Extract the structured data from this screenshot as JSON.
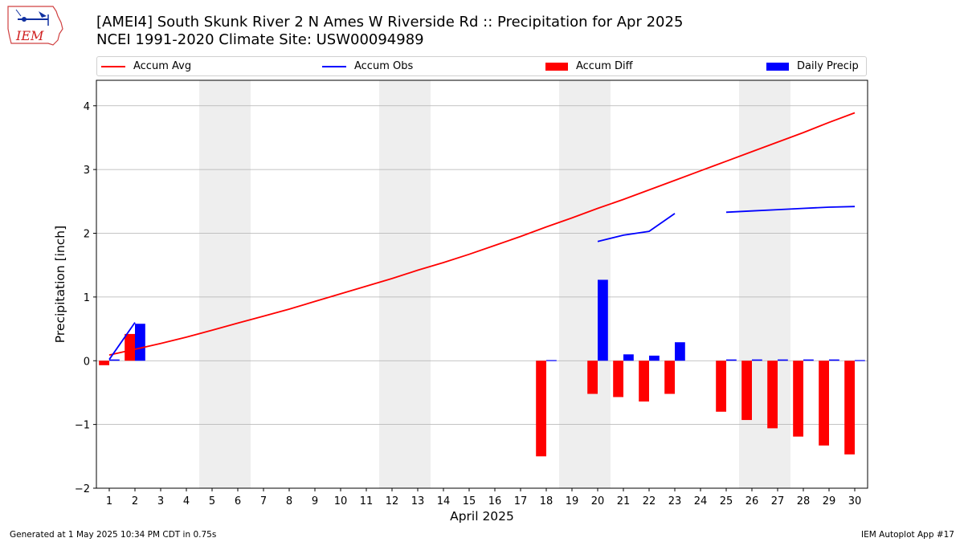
{
  "header": {
    "title_line1": "[AMEI4] South Skunk River 2 N Ames W Riverside Rd :: Precipitation for Apr 2025",
    "title_line2": "NCEI 1991-2020 Climate Site: USW00094989",
    "logo_text": "IEM"
  },
  "footer": {
    "generated": "Generated at 1 May 2025 10:34 PM CDT in 0.75s",
    "app": "IEM Autoplot App #17"
  },
  "colors": {
    "avg": "#ff0000",
    "obs": "#0000ff",
    "diff": "#ff0000",
    "daily": "#0000ff",
    "weekend": "#eeeeee",
    "grid": "#b0b0b0"
  },
  "chart_data": {
    "type": "bar",
    "xlabel": "April 2025",
    "ylabel": "Precipitation [inch]",
    "xlim": [
      0.5,
      30.5
    ],
    "ylim": [
      -2,
      4.4
    ],
    "yticks": [
      -2,
      -1,
      0,
      1,
      2,
      3,
      4
    ],
    "grid": "horizontal",
    "legend_placement": "top",
    "days": [
      1,
      2,
      3,
      4,
      5,
      6,
      7,
      8,
      9,
      10,
      11,
      12,
      13,
      14,
      15,
      16,
      17,
      18,
      19,
      20,
      21,
      22,
      23,
      24,
      25,
      26,
      27,
      28,
      29,
      30
    ],
    "shaded_days": [
      [
        5,
        6
      ],
      [
        12,
        13
      ],
      [
        19,
        20
      ],
      [
        26,
        27
      ]
    ],
    "series": [
      {
        "name": "Accum Avg",
        "type": "line",
        "values": [
          0.09,
          0.18,
          0.27,
          0.37,
          0.48,
          0.59,
          0.7,
          0.81,
          0.93,
          1.05,
          1.17,
          1.29,
          1.42,
          1.54,
          1.67,
          1.81,
          1.95,
          2.1,
          2.24,
          2.39,
          2.53,
          2.68,
          2.83,
          2.98,
          3.13,
          3.28,
          3.43,
          3.58,
          3.74,
          3.89
        ]
      },
      {
        "name": "Accum Obs",
        "type": "line",
        "values": [
          0.02,
          0.6,
          null,
          null,
          null,
          null,
          null,
          null,
          null,
          null,
          null,
          null,
          null,
          null,
          null,
          null,
          null,
          null,
          null,
          1.87,
          1.97,
          2.03,
          2.31,
          null,
          2.33,
          2.35,
          2.37,
          2.39,
          2.41,
          2.42
        ]
      },
      {
        "name": "Accum Diff",
        "type": "bar",
        "values": [
          -0.07,
          0.42,
          null,
          null,
          null,
          null,
          null,
          null,
          null,
          null,
          null,
          null,
          null,
          null,
          null,
          null,
          null,
          -1.5,
          null,
          -0.52,
          -0.57,
          -0.64,
          -0.52,
          null,
          -0.8,
          -0.93,
          -1.06,
          -1.19,
          -1.33,
          -1.47
        ]
      },
      {
        "name": "Daily Precip",
        "type": "bar",
        "values": [
          0.02,
          0.58,
          null,
          null,
          null,
          null,
          null,
          null,
          null,
          null,
          null,
          null,
          null,
          null,
          null,
          null,
          null,
          0.01,
          null,
          1.27,
          0.1,
          0.08,
          0.29,
          null,
          0.02,
          0.02,
          0.02,
          0.02,
          0.02,
          0.01
        ]
      }
    ]
  }
}
